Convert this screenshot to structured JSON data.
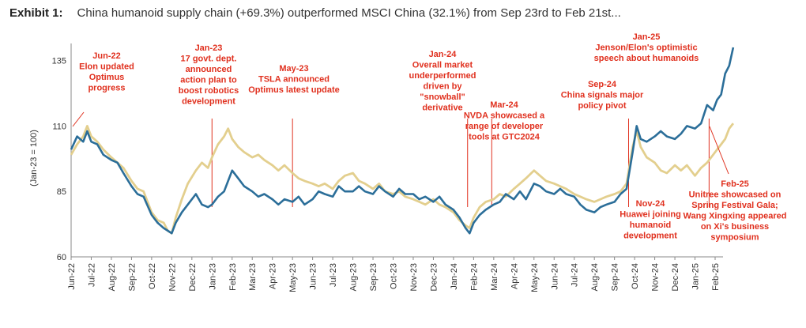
{
  "exhibit": {
    "label": "Exhibit 1:",
    "title": "China humanoid supply chain (+69.3%) outperformed MSCI China (32.1%) from Sep 23rd to Feb 21st..."
  },
  "colors": {
    "supply_chain": "#2b6e99",
    "msci_china": "#e3cf8e",
    "annotation": "#e0301e",
    "axis": "#888888"
  },
  "chart_data": {
    "type": "line",
    "ylabel": "(Jan-23 = 100)",
    "ylim": [
      60,
      140
    ],
    "yticks": [
      60,
      85,
      110,
      135
    ],
    "grid": false,
    "xticks": [
      "Jun-22",
      "Jul-22",
      "Aug-22",
      "Sep-22",
      "Oct-22",
      "Nov-22",
      "Dec-22",
      "Jan-23",
      "Feb-23",
      "Mar-23",
      "Apr-23",
      "May-23",
      "Jun-23",
      "Jul-23",
      "Aug-23",
      "Sep-23",
      "Oct-23",
      "Nov-23",
      "Dec-23",
      "Jan-24",
      "Feb-24",
      "Mar-24",
      "Apr-24",
      "May-24",
      "Jun-24",
      "Jul-24",
      "Aug-24",
      "Sep-24",
      "Oct-24",
      "Nov-24",
      "Dec-24",
      "Jan-25",
      "Feb-25"
    ],
    "series": [
      {
        "key": "supply_chain",
        "values": [
          [
            0,
            101
          ],
          [
            0.3,
            106
          ],
          [
            0.6,
            104
          ],
          [
            0.8,
            108
          ],
          [
            1.0,
            104
          ],
          [
            1.3,
            103
          ],
          [
            1.6,
            99
          ],
          [
            2.0,
            97
          ],
          [
            2.3,
            96
          ],
          [
            2.6,
            92
          ],
          [
            3.0,
            87
          ],
          [
            3.3,
            84
          ],
          [
            3.6,
            83
          ],
          [
            4.0,
            76
          ],
          [
            4.3,
            73
          ],
          [
            4.6,
            71
          ],
          [
            4.8,
            70
          ],
          [
            5.0,
            69
          ],
          [
            5.2,
            73
          ],
          [
            5.5,
            77
          ],
          [
            5.8,
            80
          ],
          [
            6.2,
            84
          ],
          [
            6.5,
            80
          ],
          [
            6.8,
            79
          ],
          [
            7.0,
            80
          ],
          [
            7.3,
            83
          ],
          [
            7.6,
            85
          ],
          [
            7.8,
            89
          ],
          [
            8.0,
            93
          ],
          [
            8.3,
            90
          ],
          [
            8.6,
            87
          ],
          [
            9.0,
            85
          ],
          [
            9.3,
            83
          ],
          [
            9.6,
            84
          ],
          [
            10.0,
            82
          ],
          [
            10.3,
            80
          ],
          [
            10.6,
            82
          ],
          [
            11.0,
            81
          ],
          [
            11.3,
            83
          ],
          [
            11.6,
            80
          ],
          [
            12.0,
            82
          ],
          [
            12.3,
            85
          ],
          [
            12.6,
            84
          ],
          [
            13.0,
            83
          ],
          [
            13.3,
            87
          ],
          [
            13.6,
            85
          ],
          [
            14.0,
            85
          ],
          [
            14.3,
            87
          ],
          [
            14.6,
            85
          ],
          [
            15.0,
            84
          ],
          [
            15.3,
            87
          ],
          [
            15.6,
            85
          ],
          [
            16.0,
            83
          ],
          [
            16.3,
            86
          ],
          [
            16.6,
            84
          ],
          [
            17.0,
            84
          ],
          [
            17.3,
            82
          ],
          [
            17.6,
            83
          ],
          [
            18.0,
            81
          ],
          [
            18.3,
            83
          ],
          [
            18.6,
            80
          ],
          [
            19.0,
            78
          ],
          [
            19.3,
            75
          ],
          [
            19.6,
            71
          ],
          [
            19.8,
            69
          ],
          [
            20.0,
            73
          ],
          [
            20.3,
            76
          ],
          [
            20.6,
            78
          ],
          [
            21.0,
            80
          ],
          [
            21.3,
            81
          ],
          [
            21.6,
            84
          ],
          [
            22.0,
            82
          ],
          [
            22.3,
            85
          ],
          [
            22.6,
            82
          ],
          [
            23.0,
            88
          ],
          [
            23.3,
            87
          ],
          [
            23.6,
            85
          ],
          [
            24.0,
            84
          ],
          [
            24.3,
            86
          ],
          [
            24.6,
            84
          ],
          [
            25.0,
            83
          ],
          [
            25.3,
            80
          ],
          [
            25.6,
            78
          ],
          [
            26.0,
            77
          ],
          [
            26.3,
            79
          ],
          [
            26.6,
            80
          ],
          [
            27.0,
            81
          ],
          [
            27.3,
            84
          ],
          [
            27.6,
            86
          ],
          [
            27.9,
            100
          ],
          [
            28.1,
            110
          ],
          [
            28.3,
            105
          ],
          [
            28.6,
            104
          ],
          [
            29.0,
            106
          ],
          [
            29.3,
            108
          ],
          [
            29.6,
            106
          ],
          [
            30.0,
            105
          ],
          [
            30.3,
            107
          ],
          [
            30.6,
            110
          ],
          [
            31.0,
            109
          ],
          [
            31.3,
            111
          ],
          [
            31.6,
            118
          ],
          [
            31.9,
            116
          ],
          [
            32.1,
            120
          ],
          [
            32.3,
            122
          ],
          [
            32.5,
            130
          ],
          [
            32.7,
            133
          ],
          [
            32.9,
            140
          ]
        ]
      },
      {
        "key": "msci_china",
        "values": [
          [
            0,
            99
          ],
          [
            0.3,
            103
          ],
          [
            0.6,
            106
          ],
          [
            0.8,
            110
          ],
          [
            1.0,
            106
          ],
          [
            1.3,
            104
          ],
          [
            1.6,
            101
          ],
          [
            2.0,
            98
          ],
          [
            2.3,
            96
          ],
          [
            2.6,
            94
          ],
          [
            3.0,
            89
          ],
          [
            3.3,
            86
          ],
          [
            3.6,
            85
          ],
          [
            4.0,
            77
          ],
          [
            4.3,
            74
          ],
          [
            4.6,
            73
          ],
          [
            4.8,
            70
          ],
          [
            5.0,
            69
          ],
          [
            5.2,
            75
          ],
          [
            5.5,
            82
          ],
          [
            5.8,
            88
          ],
          [
            6.2,
            93
          ],
          [
            6.5,
            96
          ],
          [
            6.8,
            94
          ],
          [
            7.0,
            98
          ],
          [
            7.3,
            103
          ],
          [
            7.6,
            106
          ],
          [
            7.8,
            109
          ],
          [
            8.0,
            105
          ],
          [
            8.3,
            102
          ],
          [
            8.6,
            100
          ],
          [
            9.0,
            98
          ],
          [
            9.3,
            99
          ],
          [
            9.6,
            97
          ],
          [
            10.0,
            95
          ],
          [
            10.3,
            93
          ],
          [
            10.6,
            95
          ],
          [
            11.0,
            92
          ],
          [
            11.3,
            90
          ],
          [
            11.6,
            89
          ],
          [
            12.0,
            88
          ],
          [
            12.3,
            87
          ],
          [
            12.6,
            88
          ],
          [
            13.0,
            86
          ],
          [
            13.3,
            89
          ],
          [
            13.6,
            91
          ],
          [
            14.0,
            92
          ],
          [
            14.3,
            89
          ],
          [
            14.6,
            88
          ],
          [
            15.0,
            86
          ],
          [
            15.3,
            88
          ],
          [
            15.6,
            85
          ],
          [
            16.0,
            84
          ],
          [
            16.3,
            85
          ],
          [
            16.6,
            83
          ],
          [
            17.0,
            82
          ],
          [
            17.3,
            81
          ],
          [
            17.6,
            80
          ],
          [
            18.0,
            82
          ],
          [
            18.3,
            80
          ],
          [
            18.6,
            79
          ],
          [
            19.0,
            77
          ],
          [
            19.3,
            74
          ],
          [
            19.6,
            72
          ],
          [
            19.8,
            71
          ],
          [
            20.0,
            75
          ],
          [
            20.3,
            79
          ],
          [
            20.6,
            81
          ],
          [
            21.0,
            82
          ],
          [
            21.3,
            84
          ],
          [
            21.6,
            83
          ],
          [
            22.0,
            86
          ],
          [
            22.3,
            88
          ],
          [
            22.6,
            90
          ],
          [
            23.0,
            93
          ],
          [
            23.3,
            91
          ],
          [
            23.6,
            89
          ],
          [
            24.0,
            88
          ],
          [
            24.3,
            87
          ],
          [
            24.6,
            86
          ],
          [
            25.0,
            84
          ],
          [
            25.3,
            83
          ],
          [
            25.6,
            82
          ],
          [
            26.0,
            81
          ],
          [
            26.3,
            82
          ],
          [
            26.6,
            83
          ],
          [
            27.0,
            84
          ],
          [
            27.3,
            85
          ],
          [
            27.6,
            88
          ],
          [
            27.9,
            102
          ],
          [
            28.1,
            108
          ],
          [
            28.3,
            102
          ],
          [
            28.6,
            98
          ],
          [
            29.0,
            96
          ],
          [
            29.3,
            93
          ],
          [
            29.6,
            92
          ],
          [
            30.0,
            95
          ],
          [
            30.3,
            93
          ],
          [
            30.6,
            95
          ],
          [
            31.0,
            91
          ],
          [
            31.3,
            94
          ],
          [
            31.6,
            96
          ],
          [
            31.9,
            99
          ],
          [
            32.1,
            101
          ],
          [
            32.3,
            103
          ],
          [
            32.5,
            105
          ],
          [
            32.7,
            109
          ],
          [
            32.9,
            111
          ]
        ]
      }
    ],
    "markers": [
      7.0,
      11.0,
      19.7,
      20.9,
      27.7,
      31.7
    ],
    "annotations": [
      {
        "lines": [
          "Jun-22",
          "Elon updated",
          "Optimus",
          "progress"
        ]
      },
      {
        "lines": [
          "Jan-23",
          "17 govt. dept.",
          "announced",
          "action plan to",
          "boost robotics",
          "development"
        ]
      },
      {
        "lines": [
          "May-23",
          "TSLA announced",
          "Optimus latest update"
        ]
      },
      {
        "lines": [
          "Jan-24",
          "Overall market",
          "underperformed",
          "driven by",
          "\"snowball\"",
          "derivative"
        ]
      },
      {
        "lines": [
          "Mar-24",
          "NVDA showcased a",
          "range of developer",
          "tools at GTC2024"
        ]
      },
      {
        "lines": [
          "Sep-24",
          "China signals major",
          "policy pivot"
        ]
      },
      {
        "lines": [
          "Jan-25",
          "Jenson/Elon's optimistic",
          "speech about humanoids"
        ]
      },
      {
        "lines": [
          "Nov-24",
          "Huawei joining",
          "humanoid",
          "development"
        ]
      },
      {
        "lines": [
          "Feb-25",
          "Unitree showcased on",
          "Spring Festival Gala;",
          "Wang Xingxing appeared",
          "on Xi's business",
          "symposium"
        ]
      }
    ]
  }
}
